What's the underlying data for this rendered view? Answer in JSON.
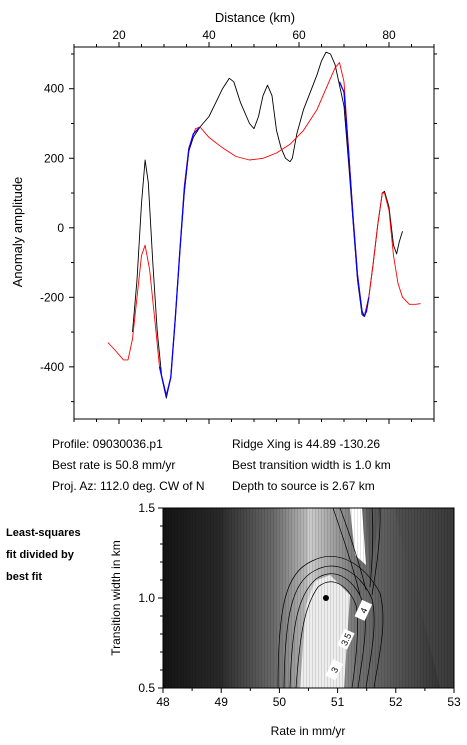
{
  "chart_data": [
    {
      "type": "line",
      "xlabel": "Distance (km)",
      "ylabel": "Anomaly amplitude",
      "x_tick_labels": [
        "20",
        "40",
        "60",
        "80"
      ],
      "y_tick_labels": [
        "400",
        "200",
        "0",
        "-200",
        "-400"
      ],
      "x_ticks": [
        20,
        40,
        60,
        80
      ],
      "y_ticks": [
        400,
        200,
        0,
        -200,
        -400
      ],
      "xlim": [
        10,
        90
      ],
      "ylim": [
        -550,
        520
      ],
      "x_axis_position": "top",
      "grid": false,
      "series": [
        {
          "color": "#000000",
          "points": [
            [
              23,
              -300
            ],
            [
              24,
              -150
            ],
            [
              25,
              70
            ],
            [
              25.8,
              195
            ],
            [
              26.5,
              130
            ],
            [
              27.5,
              -100
            ],
            [
              28.5,
              -300
            ],
            [
              29.5,
              -430
            ],
            [
              30.5,
              -490
            ],
            [
              31.5,
              -430
            ],
            [
              32.5,
              -260
            ],
            [
              33.5,
              -70
            ],
            [
              34.5,
              100
            ],
            [
              35.5,
              220
            ],
            [
              36.5,
              260
            ],
            [
              38,
              290
            ],
            [
              40,
              320
            ],
            [
              41.5,
              360
            ],
            [
              43,
              400
            ],
            [
              44.5,
              430
            ],
            [
              45.5,
              420
            ],
            [
              47,
              360
            ],
            [
              49,
              300
            ],
            [
              50,
              285
            ],
            [
              51,
              320
            ],
            [
              52,
              380
            ],
            [
              53,
              410
            ],
            [
              54,
              380
            ],
            [
              55,
              280
            ],
            [
              56,
              230
            ],
            [
              57,
              200
            ],
            [
              58,
              190
            ],
            [
              58.5,
              200
            ],
            [
              59.5,
              270
            ],
            [
              61,
              340
            ],
            [
              62.5,
              390
            ],
            [
              64,
              440
            ],
            [
              65,
              480
            ],
            [
              66,
              505
            ],
            [
              67,
              500
            ],
            [
              68,
              470
            ],
            [
              69,
              410
            ],
            [
              70,
              350
            ],
            [
              71,
              190
            ],
            [
              72,
              20
            ],
            [
              73,
              -150
            ],
            [
              74,
              -250
            ],
            [
              74.5,
              -255
            ],
            [
              75.5,
              -200
            ],
            [
              76.5,
              -100
            ],
            [
              77.5,
              10
            ],
            [
              78.5,
              100
            ],
            [
              79,
              105
            ],
            [
              80,
              60
            ],
            [
              81,
              -50
            ],
            [
              81.7,
              -75
            ],
            [
              82.3,
              -40
            ],
            [
              83,
              -10
            ]
          ]
        },
        {
          "color": "#ff0000",
          "points": [
            [
              17.5,
              -330
            ],
            [
              19,
              -350
            ],
            [
              21,
              -380
            ],
            [
              22,
              -380
            ],
            [
              23,
              -320
            ],
            [
              24,
              -200
            ],
            [
              25,
              -80
            ],
            [
              25.8,
              -50
            ],
            [
              26.8,
              -120
            ],
            [
              28,
              -270
            ],
            [
              29,
              -400
            ],
            [
              30.5,
              -480
            ],
            [
              31.5,
              -430
            ],
            [
              32.5,
              -260
            ],
            [
              33.5,
              -70
            ],
            [
              34.5,
              120
            ],
            [
              35.5,
              230
            ],
            [
              37,
              285
            ],
            [
              38,
              290
            ],
            [
              40,
              260
            ],
            [
              43,
              230
            ],
            [
              46,
              205
            ],
            [
              49,
              195
            ],
            [
              52,
              200
            ],
            [
              55,
              215
            ],
            [
              58,
              240
            ],
            [
              61,
              280
            ],
            [
              64,
              340
            ],
            [
              66,
              400
            ],
            [
              68,
              460
            ],
            [
              69,
              475
            ],
            [
              70,
              420
            ],
            [
              71,
              230
            ],
            [
              72,
              40
            ],
            [
              73,
              -130
            ],
            [
              74,
              -240
            ],
            [
              74.5,
              -255
            ],
            [
              75.5,
              -200
            ],
            [
              76.5,
              -100
            ],
            [
              77.5,
              10
            ],
            [
              78.5,
              100
            ],
            [
              79,
              100
            ],
            [
              80,
              50
            ],
            [
              81,
              -80
            ],
            [
              82,
              -160
            ],
            [
              83,
              -200
            ],
            [
              84.5,
              -220
            ],
            [
              86,
              -220
            ],
            [
              87,
              -218
            ]
          ]
        },
        {
          "color": "#0000ff",
          "points": [
            [
              29,
              -400
            ],
            [
              30.5,
              -485
            ],
            [
              31.5,
              -430
            ],
            [
              32.5,
              -260
            ],
            [
              33.5,
              -70
            ],
            [
              34.5,
              110
            ],
            [
              35.5,
              225
            ],
            [
              36.5,
              270
            ],
            [
              38,
              290
            ]
          ]
        },
        {
          "color": "#0000ff",
          "points": [
            [
              69,
              420
            ],
            [
              70,
              390
            ],
            [
              71,
              220
            ],
            [
              72,
              30
            ],
            [
              73,
              -140
            ],
            [
              74,
              -240
            ],
            [
              74.5,
              -255
            ],
            [
              75,
              -240
            ],
            [
              75.5,
              -200
            ]
          ]
        }
      ]
    },
    {
      "type": "heatmap",
      "xlabel": "Rate in mm/yr",
      "ylabel": "Transition width in km",
      "x_tick_labels": [
        "48",
        "49",
        "50",
        "51",
        "52",
        "53"
      ],
      "y_tick_labels": [
        "1.5",
        "1.0",
        "0.5"
      ],
      "x_ticks": [
        48,
        49,
        50,
        51,
        52,
        53
      ],
      "y_ticks": [
        1.5,
        1.0,
        0.5
      ],
      "xlim": [
        48,
        53
      ],
      "ylim": [
        0.5,
        1.5
      ],
      "contour_labels": [
        {
          "text": "4",
          "x": 51.45,
          "y": 0.93
        },
        {
          "text": "3.5",
          "x": 51.15,
          "y": 0.77
        },
        {
          "text": "3",
          "x": 50.95,
          "y": 0.6
        }
      ],
      "best_fit_point": {
        "x": 50.8,
        "y": 1.0
      }
    }
  ],
  "info": {
    "profile": "Profile: 09030036.p1",
    "best_rate": "Best rate is 50.8 mm/yr",
    "proj_az": "Proj. Az: 112.0 deg. CW of N",
    "ridge_xing": "Ridge Xing is 44.89 -130.26",
    "best_width": "Best transition width is 1.0 km",
    "depth": "Depth to source is   2.67 km"
  },
  "side_label": [
    "Least-squares",
    "fit divided by",
    "best fit"
  ]
}
